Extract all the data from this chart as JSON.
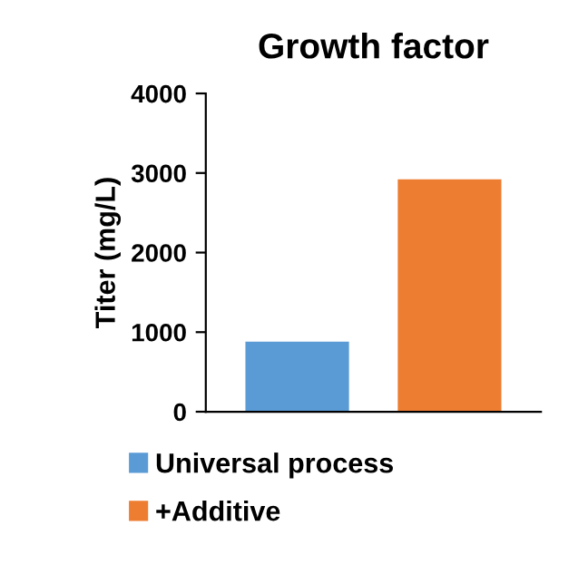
{
  "chart_data": {
    "type": "bar",
    "title": "Growth factor",
    "ylabel": "Titer (mg/L)",
    "categories": [
      null,
      null
    ],
    "series": [
      {
        "name": "Universal process",
        "color": "#5b9bd5",
        "values": [
          880,
          null
        ]
      },
      {
        "name": "+Additive",
        "color": "#ed7d31",
        "values": [
          null,
          2920
        ]
      }
    ],
    "ylim": [
      0,
      4000
    ],
    "yticks": [
      0,
      1000,
      2000,
      3000,
      4000
    ],
    "grid": false,
    "legend": "bottom"
  }
}
